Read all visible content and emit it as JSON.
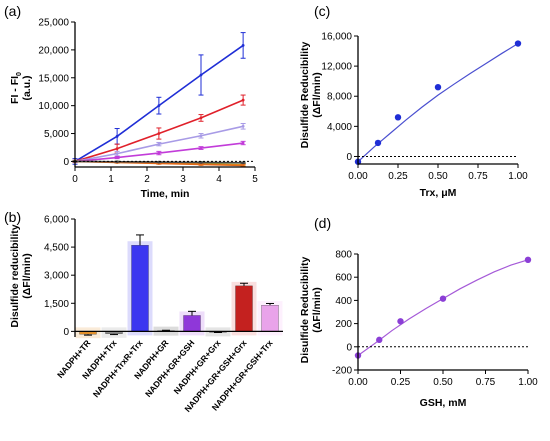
{
  "panels": {
    "a": {
      "label": "(a)"
    },
    "b": {
      "label": "(b)"
    },
    "c": {
      "label": "(c)"
    },
    "d": {
      "label": "(d)"
    }
  },
  "chart_data": [
    {
      "panel": "(a)",
      "type": "line",
      "xlabel": "Time, min",
      "ylabel_main": "FI - FI",
      "ylabel_sub": "0",
      "ylabel_unit": "(a.u.)",
      "xlim": [
        0,
        5
      ],
      "ylim": [
        -1000,
        25000
      ],
      "xticks": [
        "0",
        "1",
        "2",
        "3",
        "4",
        "5"
      ],
      "xtick_values": [
        0,
        1,
        2,
        3,
        4,
        5
      ],
      "yticks": [
        "0",
        "5,000",
        "10,000",
        "15,000",
        "20,000",
        "25,000"
      ],
      "ytick_values": [
        0,
        5000,
        10000,
        15000,
        20000,
        25000
      ],
      "x": [
        0,
        1.17,
        2.33,
        3.5,
        4.67
      ],
      "zero_line": true,
      "series": [
        {
          "color": "#1f2ed6",
          "values": [
            0,
            4500,
            10000,
            15500,
            20800
          ],
          "errors": [
            500,
            1400,
            1500,
            3600,
            2300
          ]
        },
        {
          "color": "#e0202a",
          "values": [
            0,
            2300,
            5000,
            7800,
            11000
          ],
          "errors": [
            200,
            800,
            1000,
            600,
            900
          ]
        },
        {
          "color": "#a89be6",
          "values": [
            0,
            1400,
            3100,
            4600,
            6300
          ],
          "errors": [
            150,
            400,
            300,
            400,
            500
          ]
        },
        {
          "color": "#c23cd9",
          "values": [
            0,
            700,
            1500,
            2400,
            3300
          ],
          "errors": [
            100,
            200,
            300,
            250,
            300
          ]
        },
        {
          "color": "#4caf50",
          "values": [
            0,
            -80,
            -150,
            -200,
            -250
          ],
          "errors": [
            100,
            120,
            120,
            150,
            150
          ]
        },
        {
          "color": "#d5a21c",
          "values": [
            0,
            -150,
            -300,
            -450,
            -600
          ],
          "errors": [
            100,
            120,
            140,
            160,
            180
          ]
        },
        {
          "color": "#e46b1a",
          "values": [
            0,
            -180,
            -360,
            -540,
            -720
          ],
          "errors": [
            100,
            120,
            140,
            160,
            180
          ]
        },
        {
          "color": "#444444",
          "values": [
            0,
            -60,
            -120,
            -180,
            -240
          ],
          "errors": [
            80,
            80,
            90,
            90,
            100
          ]
        }
      ]
    },
    {
      "panel": "(b)",
      "type": "bar",
      "ylabel_main": "Disulfide reducibility",
      "ylabel_unit": "(ΔFl/min)",
      "ylim": [
        -300,
        6000
      ],
      "yticks": [
        "0",
        "1,500",
        "3,000",
        "4,500",
        "6,000"
      ],
      "ytick_values": [
        0,
        1500,
        3000,
        4500,
        6000
      ],
      "zero_line": true,
      "categories": [
        "NADPH+TR",
        "NADPH+Trx",
        "NADPH+TrxR+Trx",
        "NADPH+GR",
        "NADPH+GR+GSH",
        "NADPH+GR+Grx",
        "NADPH+GR+GSH+Grx",
        "NADPH+GR+GSH+Trx"
      ],
      "values": [
        -150,
        -130,
        4600,
        40,
        850,
        -40,
        2430,
        1400
      ],
      "errors": [
        50,
        40,
        550,
        20,
        220,
        20,
        140,
        90
      ],
      "colors": [
        "#e3902a",
        "#8a8a8a",
        "#3b36f0",
        "#3a3a3a",
        "#8f37d9",
        "#6a6a6a",
        "#c4211f",
        "#e9a3ea"
      ],
      "hatch_colors": [
        "#f2c58f",
        "#c5c5c5",
        "#9a98f6",
        "#9c9c9c",
        "#cf9df0",
        "#b5b5b5",
        "#f0a3a2",
        "#f8d4f8"
      ]
    },
    {
      "panel": "(c)",
      "type": "scatter",
      "xlabel": "Trx, μM",
      "ylabel_main": "Disulfide Reducibility",
      "ylabel_unit": "(ΔFl/min)",
      "xlim": [
        0,
        1
      ],
      "ylim": [
        -1000,
        16000
      ],
      "xticks": [
        "0.00",
        "0.25",
        "0.50",
        "0.75",
        "1.00"
      ],
      "xtick_values": [
        0,
        0.25,
        0.5,
        0.75,
        1
      ],
      "yticks": [
        "0",
        "4,000",
        "8,000",
        "12,000",
        "16,000"
      ],
      "ytick_values": [
        0,
        4000,
        8000,
        12000,
        16000
      ],
      "x": [
        0,
        0.125,
        0.25,
        0.5,
        1.0
      ],
      "y": [
        -700,
        1800,
        5200,
        9200,
        15000
      ],
      "color": "#1f2ed6",
      "fit_color": "#4a4fd0",
      "fit": {
        "x": [
          0,
          0.1,
          0.2,
          0.3,
          0.4,
          0.5,
          0.6,
          0.7,
          0.8,
          0.9,
          1.0
        ],
        "y": [
          -700,
          1250,
          3050,
          4850,
          6550,
          8150,
          9600,
          11000,
          12350,
          13700,
          15000
        ]
      },
      "zero_line": "dotted"
    },
    {
      "panel": "(d)",
      "type": "scatter",
      "xlabel": "GSH, mM",
      "ylabel_main": "Disulfide Reducibility",
      "ylabel_unit": "(ΔFl/min)",
      "xlim": [
        0,
        1
      ],
      "ylim": [
        -200,
        800
      ],
      "xticks": [
        "0.00",
        "0.25",
        "0.50",
        "0.75",
        "1.00"
      ],
      "xtick_values": [
        0,
        0.25,
        0.5,
        0.75,
        1
      ],
      "yticks": [
        "-200",
        "0",
        "200",
        "400",
        "600",
        "800"
      ],
      "ytick_values": [
        -200,
        0,
        200,
        400,
        600,
        800
      ],
      "x": [
        0,
        0.125,
        0.25,
        0.5,
        1.0
      ],
      "y": [
        -75,
        60,
        220,
        415,
        750
      ],
      "color": "#8b3fd6",
      "fit_color": "#a55ad8",
      "fit": {
        "x": [
          0,
          0.1,
          0.2,
          0.3,
          0.4,
          0.5,
          0.6,
          0.7,
          0.8,
          0.9,
          1.0
        ],
        "y": [
          -75,
          30,
          140,
          240,
          330,
          415,
          500,
          575,
          645,
          705,
          750
        ]
      },
      "zero_line": "dotted"
    }
  ]
}
